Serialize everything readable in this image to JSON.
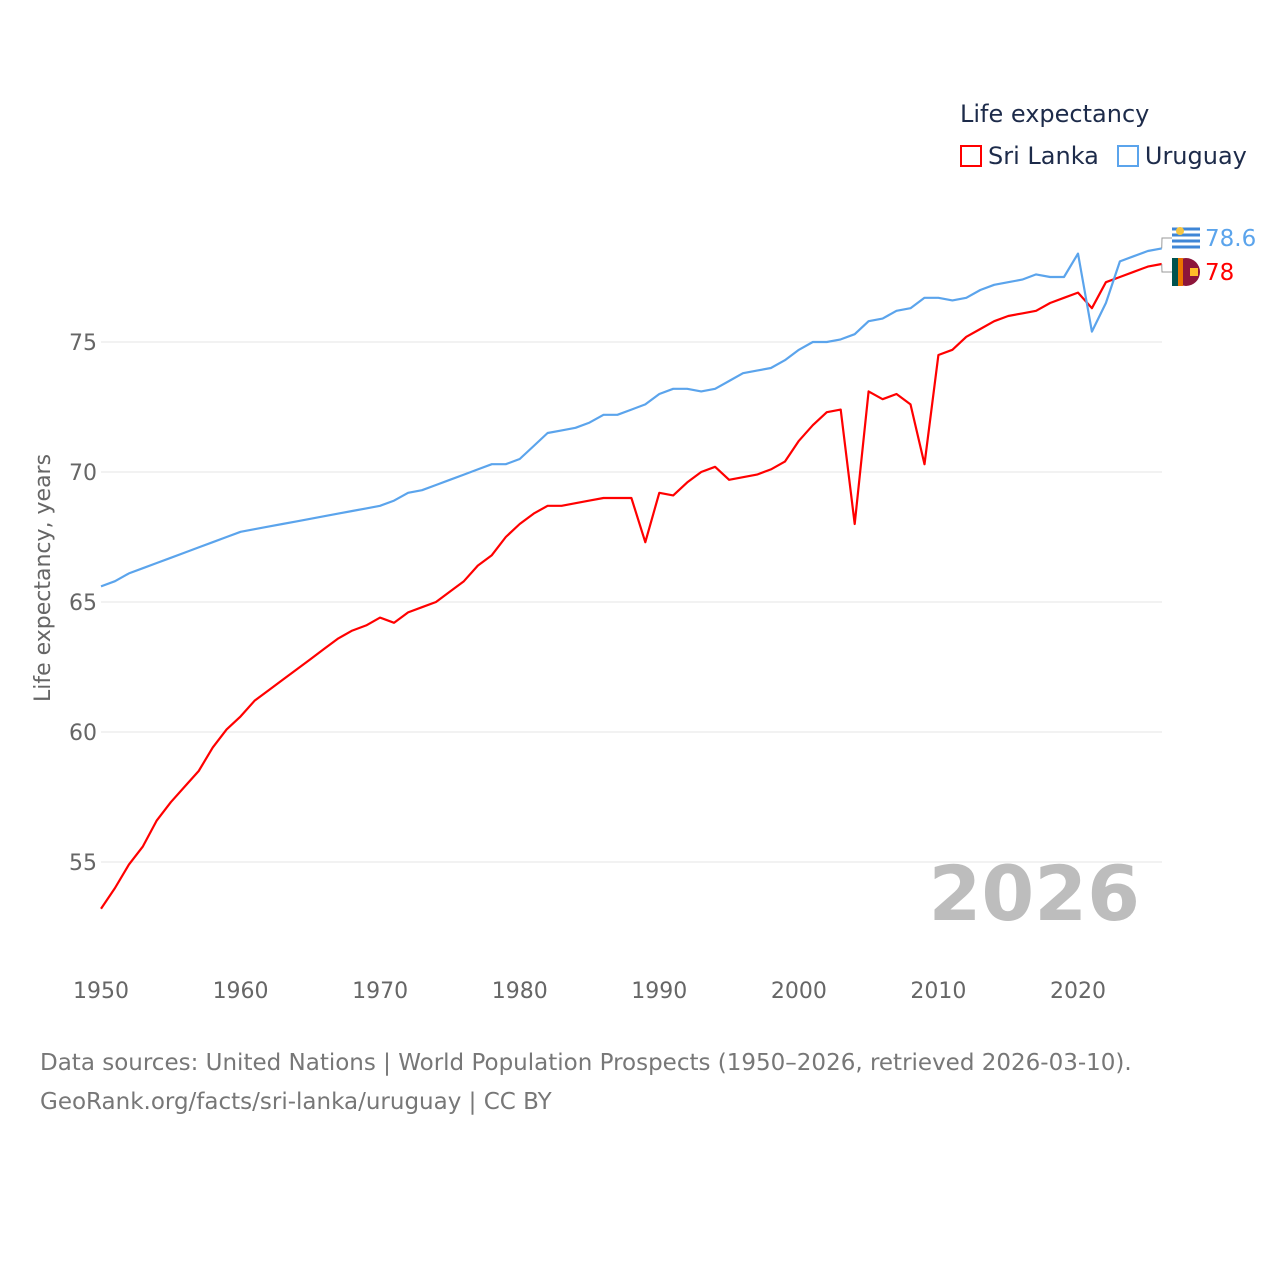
{
  "chart_data": {
    "type": "line",
    "title": "Life expectancy",
    "xlabel": "",
    "ylabel": "Life expectancy, years",
    "xlim": [
      1950,
      2026
    ],
    "ylim": [
      52,
      80
    ],
    "x_ticks": [
      "1950",
      "1960",
      "1970",
      "1980",
      "1990",
      "2000",
      "2010",
      "2020"
    ],
    "y_ticks": [
      "55",
      "60",
      "65",
      "70",
      "75"
    ],
    "grid": true,
    "legend_position": "top-right",
    "year_label": "2026",
    "x": [
      1950,
      1951,
      1952,
      1953,
      1954,
      1955,
      1956,
      1957,
      1958,
      1959,
      1960,
      1961,
      1962,
      1963,
      1964,
      1965,
      1966,
      1967,
      1968,
      1969,
      1970,
      1971,
      1972,
      1973,
      1974,
      1975,
      1976,
      1977,
      1978,
      1979,
      1980,
      1981,
      1982,
      1983,
      1984,
      1985,
      1986,
      1987,
      1988,
      1989,
      1990,
      1991,
      1992,
      1993,
      1994,
      1995,
      1996,
      1997,
      1998,
      1999,
      2000,
      2001,
      2002,
      2003,
      2004,
      2005,
      2006,
      2007,
      2008,
      2009,
      2010,
      2011,
      2012,
      2013,
      2014,
      2015,
      2016,
      2017,
      2018,
      2019,
      2020,
      2021,
      2022,
      2023,
      2024,
      2025,
      2026
    ],
    "series": [
      {
        "name": "Sri Lanka",
        "color": "#ff0000",
        "end_label": "78",
        "values": [
          53.2,
          54.0,
          54.9,
          55.6,
          56.6,
          57.3,
          57.9,
          58.5,
          59.4,
          60.1,
          60.6,
          61.2,
          61.6,
          62.0,
          62.4,
          62.8,
          63.2,
          63.6,
          63.9,
          64.1,
          64.4,
          64.2,
          64.6,
          64.8,
          65.0,
          65.4,
          65.8,
          66.4,
          66.8,
          67.5,
          68.0,
          68.4,
          68.7,
          68.7,
          68.8,
          68.9,
          69.0,
          69.0,
          69.0,
          67.3,
          69.2,
          69.1,
          69.6,
          70.0,
          70.2,
          69.7,
          69.8,
          69.9,
          70.1,
          70.4,
          71.2,
          71.8,
          72.3,
          72.4,
          68.0,
          73.1,
          72.8,
          73.0,
          72.6,
          70.3,
          74.5,
          74.7,
          75.2,
          75.5,
          75.8,
          76.0,
          76.1,
          76.2,
          76.5,
          76.7,
          76.9,
          76.3,
          77.3,
          77.5,
          77.7,
          77.9,
          78.0
        ]
      },
      {
        "name": "Uruguay",
        "color": "#5ba4ec",
        "end_label": "78.6",
        "values": [
          65.6,
          65.8,
          66.1,
          66.3,
          66.5,
          66.7,
          66.9,
          67.1,
          67.3,
          67.5,
          67.7,
          67.8,
          67.9,
          68.0,
          68.1,
          68.2,
          68.3,
          68.4,
          68.5,
          68.6,
          68.7,
          68.9,
          69.2,
          69.3,
          69.5,
          69.7,
          69.9,
          70.1,
          70.3,
          70.3,
          70.5,
          71.0,
          71.5,
          71.6,
          71.7,
          71.9,
          72.2,
          72.2,
          72.4,
          72.6,
          73.0,
          73.2,
          73.2,
          73.1,
          73.2,
          73.5,
          73.8,
          73.9,
          74.0,
          74.3,
          74.7,
          75.0,
          75.0,
          75.1,
          75.3,
          75.8,
          75.9,
          76.2,
          76.3,
          76.7,
          76.7,
          76.6,
          76.7,
          77.0,
          77.2,
          77.3,
          77.4,
          77.6,
          77.5,
          77.5,
          78.4,
          75.4,
          76.5,
          78.1,
          78.3,
          78.5,
          78.6
        ]
      }
    ]
  },
  "source_line1": "Data sources: United Nations | World Population Prospects (1950–2026, retrieved 2026-03-10).",
  "source_line2": "GeoRank.org/facts/sri-lanka/uruguay | CC BY"
}
